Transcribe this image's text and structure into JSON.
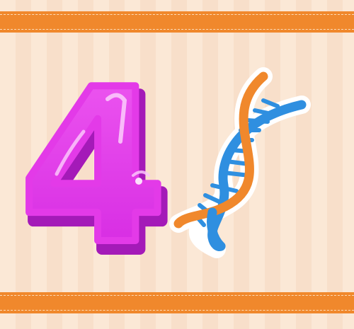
{
  "card": {
    "numeral": "4",
    "icon": "dna-double-helix-icon"
  },
  "colors": {
    "background": "#fbe8d6",
    "stripe": "#f8dfca",
    "band": "#f0882c",
    "numeral_main": "#e532e8",
    "numeral_dark": "#b21ec8",
    "numeral_highlight": "#f7a6f8",
    "helix_blue": "#2f8fe0",
    "helix_orange": "#f0882c"
  }
}
